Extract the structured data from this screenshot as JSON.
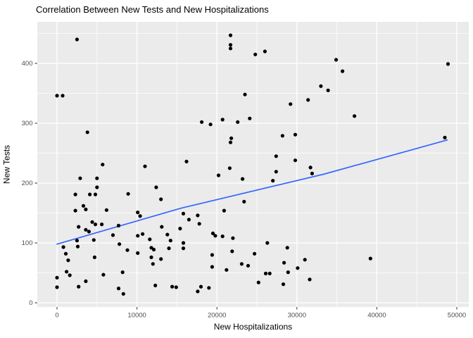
{
  "title": "Correlation Between New Tests and New Hospitalizations",
  "chart_data": {
    "type": "scatter",
    "title": "Correlation Between New Tests and New Hospitalizations",
    "xlabel": "New Hospitalizations",
    "ylabel": "New Tests",
    "x_ticks": [
      0,
      10000,
      20000,
      30000,
      40000,
      50000
    ],
    "y_ticks": [
      0,
      100,
      200,
      300,
      400
    ],
    "xlim": [
      -2450,
      51350
    ],
    "ylim": [
      -7,
      469
    ],
    "grid": true,
    "legend": "none",
    "panel_bg": "#EBEBEB",
    "grid_color": "#FFFFFF",
    "tick_label_color": "#4D4D4D",
    "tick_mark_color": "#333333",
    "point_color": "#000000",
    "line_color": "#3366FF",
    "regression_line": [
      [
        0,
        98
      ],
      [
        15500,
        158
      ],
      [
        33400,
        215
      ],
      [
        48800,
        272
      ]
    ],
    "points": [
      [
        2500,
        440
      ],
      [
        0,
        346
      ],
      [
        700,
        346
      ],
      [
        21700,
        447
      ],
      [
        21700,
        431
      ],
      [
        21700,
        425
      ],
      [
        24800,
        415
      ],
      [
        26000,
        420
      ],
      [
        23500,
        348
      ],
      [
        29200,
        332
      ],
      [
        31400,
        339
      ],
      [
        33000,
        362
      ],
      [
        33900,
        355
      ],
      [
        34900,
        406
      ],
      [
        48900,
        399
      ],
      [
        35700,
        387
      ],
      [
        37200,
        312
      ],
      [
        3800,
        285
      ],
      [
        5700,
        231
      ],
      [
        11000,
        228
      ],
      [
        2900,
        208
      ],
      [
        5000,
        208
      ],
      [
        5000,
        193
      ],
      [
        2300,
        181
      ],
      [
        4100,
        181
      ],
      [
        4800,
        181
      ],
      [
        8900,
        182
      ],
      [
        12400,
        193
      ],
      [
        13000,
        173
      ],
      [
        3300,
        162
      ],
      [
        3600,
        156
      ],
      [
        2300,
        154
      ],
      [
        6200,
        155
      ],
      [
        10100,
        151
      ],
      [
        10400,
        145
      ],
      [
        18100,
        302
      ],
      [
        19200,
        298
      ],
      [
        20700,
        306
      ],
      [
        22600,
        302
      ],
      [
        24100,
        308
      ],
      [
        21800,
        275
      ],
      [
        21700,
        268
      ],
      [
        28200,
        279
      ],
      [
        29800,
        281
      ],
      [
        16200,
        236
      ],
      [
        27400,
        245
      ],
      [
        21600,
        225
      ],
      [
        20200,
        213
      ],
      [
        23200,
        207
      ],
      [
        27400,
        219
      ],
      [
        29800,
        238
      ],
      [
        31700,
        226
      ],
      [
        31900,
        216
      ],
      [
        27000,
        204
      ],
      [
        23400,
        169
      ],
      [
        20900,
        154
      ],
      [
        17600,
        146
      ],
      [
        48500,
        276
      ],
      [
        4400,
        135
      ],
      [
        4800,
        131
      ],
      [
        5600,
        131
      ],
      [
        2700,
        127
      ],
      [
        3600,
        122
      ],
      [
        4000,
        119
      ],
      [
        7700,
        129
      ],
      [
        7000,
        113
      ],
      [
        2500,
        104
      ],
      [
        2600,
        94
      ],
      [
        800,
        93
      ],
      [
        1100,
        82
      ],
      [
        1400,
        71
      ],
      [
        0,
        42
      ],
      [
        1200,
        52
      ],
      [
        1600,
        46
      ],
      [
        0,
        26
      ],
      [
        2700,
        27
      ],
      [
        4600,
        105
      ],
      [
        4700,
        76
      ],
      [
        3600,
        36
      ],
      [
        5800,
        47
      ],
      [
        7700,
        24
      ],
      [
        8300,
        15
      ],
      [
        7800,
        98
      ],
      [
        8800,
        88
      ],
      [
        8200,
        51
      ],
      [
        10100,
        83
      ],
      [
        10100,
        112
      ],
      [
        10700,
        115
      ],
      [
        11600,
        106
      ],
      [
        11800,
        92
      ],
      [
        12100,
        89
      ],
      [
        11800,
        76
      ],
      [
        12000,
        65
      ],
      [
        13100,
        127
      ],
      [
        13800,
        114
      ],
      [
        14200,
        104
      ],
      [
        14000,
        91
      ],
      [
        13000,
        73
      ],
      [
        12300,
        29
      ],
      [
        14400,
        27
      ],
      [
        14900,
        26
      ],
      [
        15400,
        124
      ],
      [
        15800,
        149
      ],
      [
        15800,
        100
      ],
      [
        15800,
        91
      ],
      [
        16500,
        139
      ],
      [
        17800,
        132
      ],
      [
        19500,
        116
      ],
      [
        19800,
        112
      ],
      [
        20700,
        111
      ],
      [
        22000,
        108
      ],
      [
        26300,
        100
      ],
      [
        28800,
        92
      ],
      [
        21900,
        86
      ],
      [
        24700,
        82
      ],
      [
        19400,
        80
      ],
      [
        19400,
        60
      ],
      [
        23100,
        65
      ],
      [
        23900,
        62
      ],
      [
        28400,
        67
      ],
      [
        31000,
        72
      ],
      [
        30100,
        58
      ],
      [
        21200,
        55
      ],
      [
        26100,
        49
      ],
      [
        26600,
        49
      ],
      [
        28900,
        51
      ],
      [
        25200,
        34
      ],
      [
        28300,
        31
      ],
      [
        31600,
        39
      ],
      [
        18000,
        27
      ],
      [
        19000,
        25
      ],
      [
        17600,
        19
      ],
      [
        39200,
        74
      ]
    ]
  }
}
